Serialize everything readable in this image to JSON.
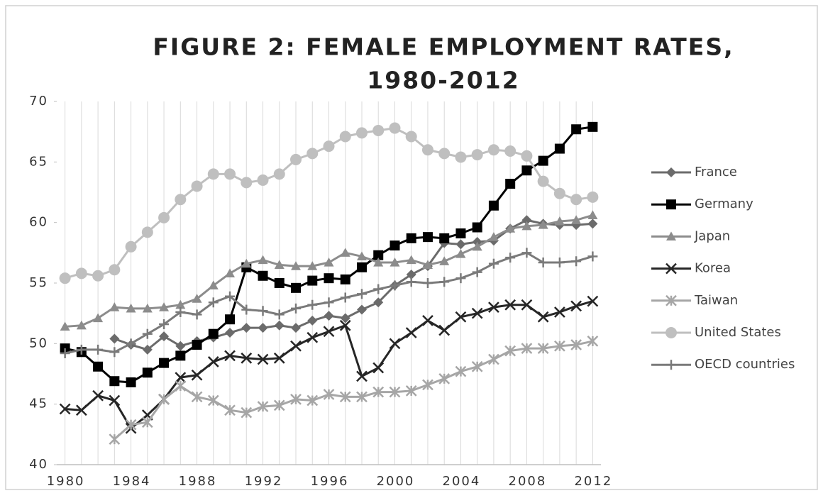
{
  "chart_data": {
    "type": "line",
    "title": [
      "FIGURE 2: FEMALE EMPLOYMENT RATES,",
      "1980-2012"
    ],
    "x": [
      1980,
      1981,
      1982,
      1983,
      1984,
      1985,
      1986,
      1987,
      1988,
      1989,
      1990,
      1991,
      1992,
      1993,
      1994,
      1995,
      1996,
      1997,
      1998,
      1999,
      2000,
      2001,
      2002,
      2003,
      2004,
      2005,
      2006,
      2007,
      2008,
      2009,
      2010,
      2011,
      2012
    ],
    "xlim": [
      1979.5,
      2012.5
    ],
    "xticks": [
      1980,
      1984,
      1988,
      1992,
      1996,
      2000,
      2004,
      2008,
      2012
    ],
    "ylim": [
      40,
      70
    ],
    "yticks": [
      40,
      45,
      50,
      55,
      60,
      65,
      70
    ],
    "grid": true,
    "legend": "right",
    "series": [
      {
        "name": "France",
        "color": "#6b6b6b",
        "marker": "diamond",
        "values": [
          null,
          null,
          null,
          50.4,
          49.9,
          49.5,
          50.6,
          49.8,
          50.2,
          50.5,
          50.9,
          51.3,
          51.3,
          51.5,
          51.3,
          51.9,
          52.3,
          52.1,
          52.8,
          53.4,
          54.8,
          55.7,
          56.4,
          58.3,
          58.2,
          58.4,
          58.5,
          59.5,
          60.2,
          59.9,
          59.8,
          59.8,
          59.9
        ]
      },
      {
        "name": "Germany",
        "color": "#000000",
        "marker": "square",
        "values": [
          49.6,
          49.3,
          48.1,
          46.9,
          46.8,
          47.6,
          48.4,
          49.0,
          49.9,
          50.8,
          52.0,
          56.3,
          55.6,
          55.0,
          54.6,
          55.2,
          55.4,
          55.3,
          56.3,
          57.3,
          58.1,
          58.7,
          58.8,
          58.7,
          59.1,
          59.6,
          61.4,
          63.2,
          64.3,
          65.1,
          66.1,
          67.7,
          67.9
        ]
      },
      {
        "name": "Japan",
        "color": "#8c8c8c",
        "marker": "triangle",
        "values": [
          51.4,
          51.5,
          52.1,
          53.0,
          52.9,
          52.9,
          53.0,
          53.2,
          53.7,
          54.8,
          55.8,
          56.6,
          56.9,
          56.5,
          56.4,
          56.4,
          56.7,
          57.5,
          57.2,
          56.7,
          56.7,
          56.9,
          56.5,
          56.8,
          57.4,
          58.0,
          58.8,
          59.5,
          59.7,
          59.8,
          60.1,
          60.2,
          60.6
        ]
      },
      {
        "name": "Korea",
        "color": "#262626",
        "marker": "x",
        "values": [
          44.6,
          44.5,
          45.7,
          45.3,
          43.0,
          44.1,
          45.4,
          47.2,
          47.4,
          48.5,
          49.0,
          48.8,
          48.7,
          48.8,
          49.8,
          50.5,
          51.0,
          51.5,
          47.3,
          48.0,
          50.0,
          50.9,
          51.9,
          51.1,
          52.2,
          52.5,
          53.0,
          53.2,
          53.2,
          52.2,
          52.6,
          53.1,
          53.5
        ]
      },
      {
        "name": "Taiwan",
        "color": "#a6a6a6",
        "marker": "asterisk",
        "values": [
          null,
          null,
          null,
          42.1,
          43.3,
          43.5,
          45.4,
          46.5,
          45.6,
          45.3,
          44.5,
          44.3,
          44.8,
          44.9,
          45.4,
          45.3,
          45.8,
          45.6,
          45.6,
          46.0,
          46.0,
          46.1,
          46.6,
          47.1,
          47.7,
          48.1,
          48.7,
          49.4,
          49.6,
          49.6,
          49.8,
          49.9,
          50.2
        ]
      },
      {
        "name": "United States",
        "color": "#bfbfbf",
        "marker": "circle",
        "values": [
          55.4,
          55.8,
          55.6,
          56.1,
          58.0,
          59.2,
          60.4,
          61.9,
          63.0,
          64.0,
          64.0,
          63.3,
          63.5,
          64.0,
          65.2,
          65.7,
          66.3,
          67.1,
          67.4,
          67.6,
          67.8,
          67.1,
          66.0,
          65.7,
          65.4,
          65.6,
          66.0,
          65.9,
          65.5,
          63.4,
          62.4,
          61.9,
          62.1
        ]
      },
      {
        "name": "OECD countries",
        "color": "#7a7a7a",
        "marker": "plus",
        "values": [
          49.2,
          49.5,
          49.5,
          49.3,
          50.0,
          50.8,
          51.6,
          52.6,
          52.4,
          53.4,
          53.9,
          52.8,
          52.7,
          52.4,
          52.9,
          53.2,
          53.4,
          53.8,
          54.1,
          54.5,
          54.8,
          55.1,
          55.0,
          55.1,
          55.4,
          55.9,
          56.6,
          57.1,
          57.5,
          56.7,
          56.7,
          56.8,
          57.2
        ]
      }
    ]
  }
}
